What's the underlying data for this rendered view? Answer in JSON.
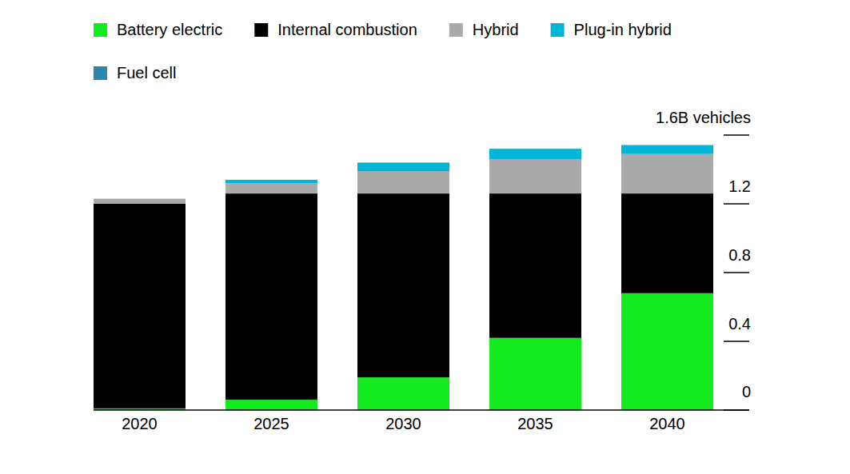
{
  "chart_data": {
    "type": "bar",
    "stacked": true,
    "legend": "top",
    "categories": [
      "2020",
      "2025",
      "2030",
      "2035",
      "2040"
    ],
    "series": [
      {
        "name": "Battery electric",
        "color": "#14eb1e",
        "values": [
          0.01,
          0.06,
          0.19,
          0.42,
          0.68
        ]
      },
      {
        "name": "Internal combustion",
        "color": "#000000",
        "values": [
          1.19,
          1.2,
          1.07,
          0.84,
          0.58
        ]
      },
      {
        "name": "Hybrid",
        "color": "#aaaaaa",
        "values": [
          0.03,
          0.06,
          0.13,
          0.2,
          0.23
        ]
      },
      {
        "name": "Plug-in hybrid",
        "color": "#00b5d8",
        "values": [
          0,
          0.02,
          0.05,
          0.06,
          0.05
        ]
      },
      {
        "name": "Fuel cell",
        "color": "#2e86ab",
        "values": [
          0,
          0,
          0,
          0.001,
          0.002
        ]
      }
    ],
    "ylim": [
      0,
      1.6
    ],
    "yticks": [
      0,
      0.4,
      0.8,
      1.2,
      {
        "value": 1.6,
        "label": "1.6B vehicles"
      }
    ]
  }
}
